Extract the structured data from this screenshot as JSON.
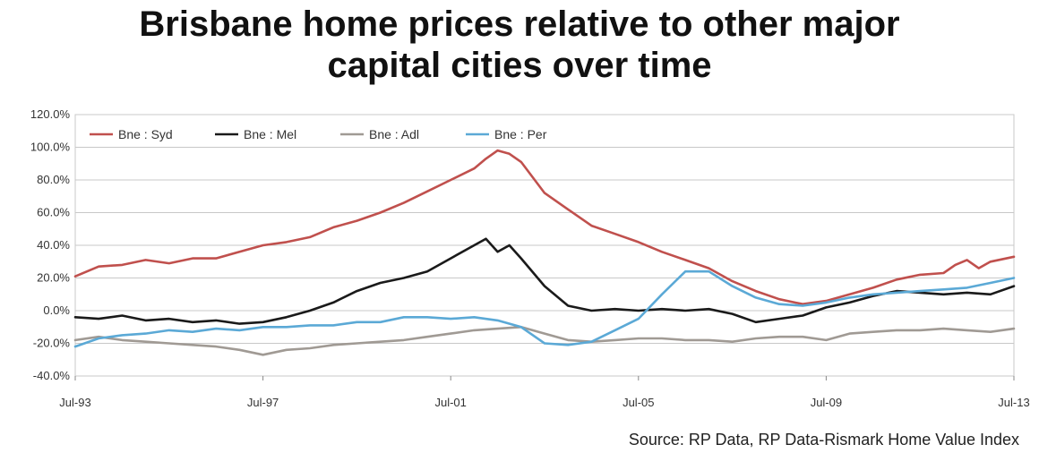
{
  "chart_data": {
    "type": "line",
    "title_line1": "Brisbane home prices relative to other major",
    "title_line2": "capital cities over time",
    "source": "Source: RP Data, RP Data-Rismark Home Value Index",
    "xlim": [
      1993.5,
      2013.5
    ],
    "ylim": [
      -40,
      120
    ],
    "y_ticks": [
      120,
      100,
      80,
      60,
      40,
      20,
      0,
      -20,
      -40
    ],
    "y_tick_labels": [
      "120.0%",
      "100.0%",
      "80.0%",
      "60.0%",
      "40.0%",
      "20.0%",
      "0.0%",
      "-20.0%",
      "-40.0%"
    ],
    "x_ticks": [
      1993.5,
      1997.5,
      2001.5,
      2005.5,
      2009.5,
      2013.5
    ],
    "x_tick_labels": [
      "Jul-93",
      "Jul-97",
      "Jul-01",
      "Jul-05",
      "Jul-09",
      "Jul-13"
    ],
    "grid": "horizontal",
    "legend_position": "top-left",
    "series": [
      {
        "name": "Bne : Syd",
        "color": "#c0504d",
        "x": [
          1993.5,
          1994,
          1994.5,
          1995,
          1995.5,
          1996,
          1996.5,
          1997,
          1997.5,
          1998,
          1998.5,
          1999,
          1999.5,
          2000,
          2000.5,
          2001,
          2001.5,
          2002,
          2002.25,
          2002.5,
          2002.75,
          2003,
          2003.5,
          2004,
          2004.5,
          2005,
          2005.5,
          2006,
          2006.5,
          2007,
          2007.5,
          2008,
          2008.5,
          2009,
          2009.5,
          2010,
          2010.5,
          2011,
          2011.5,
          2012,
          2012.25,
          2012.5,
          2012.75,
          2013,
          2013.5
        ],
        "values": [
          21,
          27,
          28,
          31,
          29,
          32,
          32,
          36,
          40,
          42,
          45,
          51,
          55,
          60,
          66,
          73,
          80,
          87,
          93,
          98,
          96,
          91,
          72,
          62,
          52,
          47,
          42,
          36,
          31,
          26,
          18,
          12,
          7,
          4,
          6,
          10,
          14,
          19,
          22,
          23,
          28,
          31,
          26,
          30,
          33
        ]
      },
      {
        "name": "Bne : Mel",
        "color": "#1a1a1a",
        "x": [
          1993.5,
          1994,
          1994.5,
          1995,
          1995.5,
          1996,
          1996.5,
          1997,
          1997.5,
          1998,
          1998.5,
          1999,
          1999.5,
          2000,
          2000.5,
          2001,
          2001.5,
          2002,
          2002.25,
          2002.5,
          2002.75,
          2003,
          2003.5,
          2004,
          2004.5,
          2005,
          2005.5,
          2006,
          2006.5,
          2007,
          2007.5,
          2008,
          2008.5,
          2009,
          2009.5,
          2010,
          2010.5,
          2011,
          2011.5,
          2012,
          2012.5,
          2013,
          2013.5
        ],
        "values": [
          -4,
          -5,
          -3,
          -6,
          -5,
          -7,
          -6,
          -8,
          -7,
          -4,
          0,
          5,
          12,
          17,
          20,
          24,
          32,
          40,
          44,
          36,
          40,
          32,
          15,
          3,
          0,
          1,
          0,
          1,
          0,
          1,
          -2,
          -7,
          -5,
          -3,
          2,
          5,
          9,
          12,
          11,
          10,
          11,
          10,
          15
        ]
      },
      {
        "name": "Bne : Adl",
        "color": "#a09a94",
        "x": [
          1993.5,
          1994,
          1994.5,
          1995,
          1995.5,
          1996,
          1996.5,
          1997,
          1997.5,
          1998,
          1998.5,
          1999,
          1999.5,
          2000,
          2000.5,
          2001,
          2001.5,
          2002,
          2002.5,
          2003,
          2003.5,
          2004,
          2004.5,
          2005,
          2005.5,
          2006,
          2006.5,
          2007,
          2007.5,
          2008,
          2008.5,
          2009,
          2009.5,
          2010,
          2010.5,
          2011,
          2011.5,
          2012,
          2012.5,
          2013,
          2013.5
        ],
        "values": [
          -18,
          -16,
          -18,
          -19,
          -20,
          -21,
          -22,
          -24,
          -27,
          -24,
          -23,
          -21,
          -20,
          -19,
          -18,
          -16,
          -14,
          -12,
          -11,
          -10,
          -14,
          -18,
          -19,
          -18,
          -17,
          -17,
          -18,
          -18,
          -19,
          -17,
          -16,
          -16,
          -18,
          -14,
          -13,
          -12,
          -12,
          -11,
          -12,
          -13,
          -11
        ]
      },
      {
        "name": "Bne : Per",
        "color": "#5ba9d6",
        "x": [
          1993.5,
          1994,
          1994.5,
          1995,
          1995.5,
          1996,
          1996.5,
          1997,
          1997.5,
          1998,
          1998.5,
          1999,
          1999.5,
          2000,
          2000.5,
          2001,
          2001.5,
          2002,
          2002.5,
          2003,
          2003.5,
          2004,
          2004.5,
          2005,
          2005.5,
          2006,
          2006.5,
          2007,
          2007.5,
          2008,
          2008.5,
          2009,
          2009.5,
          2010,
          2010.5,
          2011,
          2011.5,
          2012,
          2012.5,
          2013,
          2013.5
        ],
        "values": [
          -22,
          -17,
          -15,
          -14,
          -12,
          -13,
          -11,
          -12,
          -10,
          -10,
          -9,
          -9,
          -7,
          -7,
          -4,
          -4,
          -5,
          -4,
          -6,
          -10,
          -20,
          -21,
          -19,
          -12,
          -5,
          10,
          24,
          24,
          15,
          8,
          4,
          3,
          5,
          8,
          10,
          11,
          12,
          13,
          14,
          17,
          20
        ]
      }
    ]
  }
}
